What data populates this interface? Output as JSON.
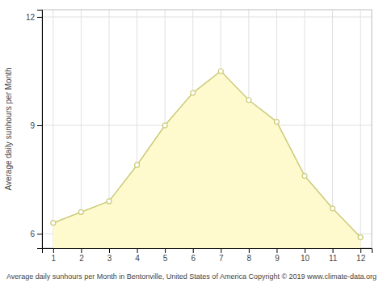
{
  "chart_data": {
    "type": "area",
    "color": "#FFFACD",
    "xlabel": "Average daily sunhours per Month in Bentonville, United States of America Copyright © 2019 www.climate-data.org",
    "ylabel": "Average daily sunhours per Month",
    "x": [
      1,
      2,
      3,
      4,
      5,
      6,
      7,
      8,
      9,
      10,
      11,
      12
    ],
    "series": [
      {
        "type": "line",
        "color": "#CBCB7A",
        "marker": "circle",
        "values": [
          6.3,
          6.6,
          6.9,
          7.9,
          9.0,
          9.9,
          10.5,
          9.7,
          9.1,
          7.6,
          6.7,
          5.9
        ]
      }
    ],
    "xlim": [
      0.6,
      12.4
    ],
    "ylim": [
      5.6,
      12.2
    ],
    "xticks": [
      1,
      2,
      3,
      4,
      5,
      6,
      7,
      8,
      9,
      10,
      11,
      12
    ],
    "yticks": [
      6,
      9,
      12
    ],
    "grid": true
  }
}
